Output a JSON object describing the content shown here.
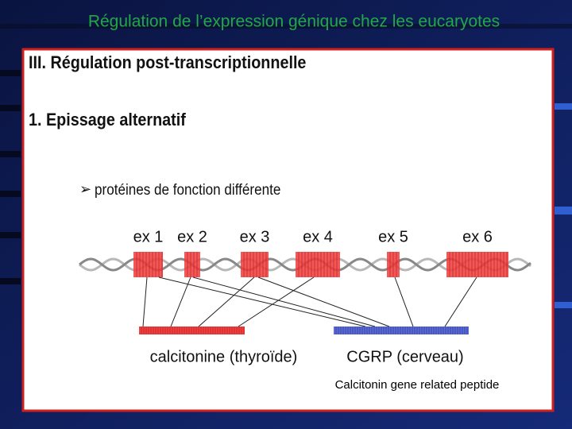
{
  "header": {
    "title": "Régulation de l’expression génique chez les eucaryotes"
  },
  "slide": {
    "heading": "III. Régulation post-transcriptionnelle",
    "subheading": "1. Epissage alternatif",
    "bullet": "protéines de fonction différente",
    "exons": [
      "ex 1",
      "ex 2",
      "ex 3",
      "ex 4",
      "ex 5",
      "ex 6"
    ],
    "products": [
      "calcitonine (thyroïde)",
      "CGRP (cerveau)"
    ],
    "note": "Calcitonin gene related peptide"
  }
}
